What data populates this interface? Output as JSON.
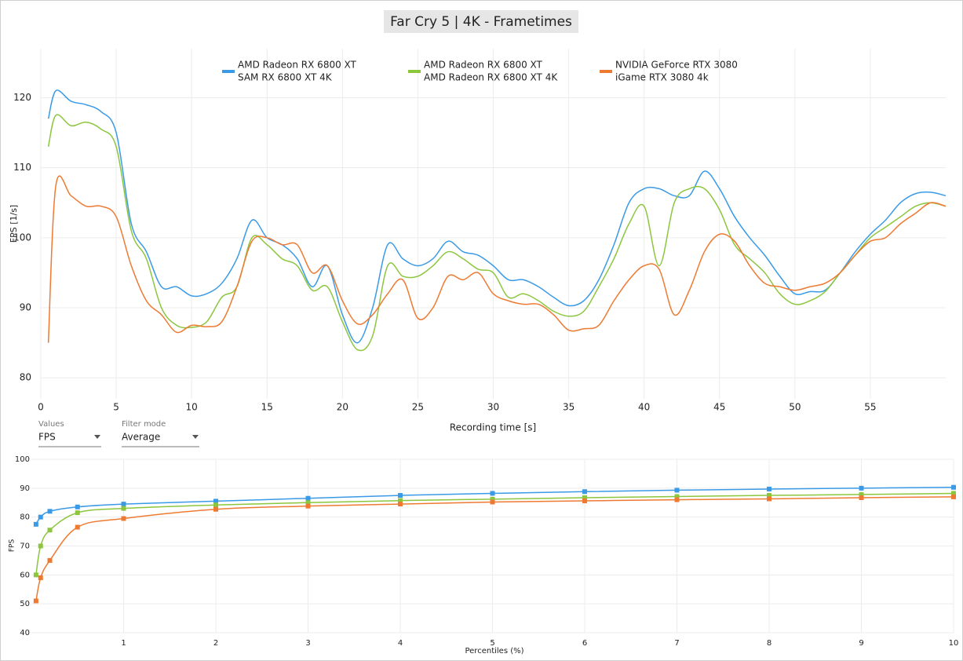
{
  "chart_data": [
    {
      "type": "line",
      "title": "Far Cry 5 | 4K - Frametimes",
      "xlabel": "Recording time [s]",
      "ylabel": "FPS [1/s]",
      "x": [
        0.5,
        1,
        2,
        3,
        4,
        5,
        6,
        7,
        8,
        9,
        10,
        11,
        12,
        13,
        14,
        15,
        16,
        17,
        18,
        19,
        20,
        21,
        22,
        23,
        24,
        25,
        26,
        27,
        28,
        29,
        30,
        31,
        32,
        33,
        34,
        35,
        36,
        37,
        38,
        39,
        40,
        41,
        42,
        43,
        44,
        45,
        46,
        47,
        48,
        49,
        50,
        51,
        52,
        53,
        54,
        55,
        56,
        57,
        58,
        59,
        60
      ],
      "series": [
        {
          "name": "AMD Radeon RX 6800 XT",
          "label": "SAM RX 6800 XT 4K",
          "color": "#3a9ae6",
          "values": [
            117,
            121,
            119.5,
            119,
            118,
            115,
            102,
            98,
            93,
            93,
            91.7,
            92,
            93.5,
            97,
            102.5,
            100,
            99,
            97,
            93,
            96,
            89,
            85,
            90,
            99,
            97,
            96,
            97,
            99.5,
            98,
            97.5,
            96,
            94,
            94,
            93,
            91.5,
            90.3,
            91,
            94,
            99,
            105,
            107,
            107,
            106,
            106,
            109.5,
            107,
            103,
            100,
            97.5,
            94.5,
            92,
            92.3,
            92.5,
            95,
            98,
            100.5,
            102.5,
            105,
            106.3,
            106.5,
            106
          ]
        },
        {
          "name": "AMD Radeon RX 6800 XT",
          "label": "AMD Radeon RX 6800 XT 4K",
          "color": "#8cc63e",
          "values": [
            113,
            117.5,
            116,
            116.5,
            115.5,
            113,
            101,
            97,
            90,
            87.5,
            87.2,
            88,
            91.5,
            93,
            100,
            99,
            97,
            96,
            92.5,
            93,
            88,
            84,
            86,
            96,
            94.5,
            94.5,
            96,
            98,
            97,
            95.5,
            95,
            91.5,
            92,
            91,
            89.5,
            88.8,
            89.5,
            93,
            97,
            102,
            104.5,
            96,
            105,
            107,
            107,
            104,
            99,
            97,
            95,
            92,
            90.5,
            91,
            92.3,
            95,
            97.5,
            100,
            101.5,
            103,
            104.5,
            105,
            104.5
          ]
        },
        {
          "name": "NVIDIA GeForce RTX 3080",
          "label": "iGame RTX 3080 4k",
          "color": "#ee7a32",
          "values": [
            85,
            107.5,
            106,
            104.5,
            104.5,
            103,
            96,
            91,
            89,
            86.5,
            87.5,
            87.3,
            88,
            93,
            99.5,
            100,
            99,
            99,
            95,
            96,
            91,
            87.7,
            89,
            92,
            94,
            88.5,
            90,
            94.5,
            94,
            95,
            92,
            91,
            90.5,
            90.5,
            89,
            86.8,
            87,
            87.5,
            91,
            94,
            96,
            95.5,
            89,
            92.5,
            98,
            100.5,
            99.5,
            96,
            93.5,
            93,
            92.5,
            93,
            93.5,
            95,
            97.5,
            99.5,
            100,
            102,
            103.5,
            105,
            104.5
          ]
        }
      ],
      "xlim": [
        0,
        60
      ],
      "xticks": [
        0,
        5,
        10,
        15,
        20,
        25,
        30,
        35,
        40,
        45,
        50,
        55
      ],
      "ylim": [
        77,
        127
      ],
      "yticks": [
        80,
        90,
        100,
        110,
        120
      ],
      "grid": true,
      "legend": "top"
    },
    {
      "type": "line",
      "xlabel": "Percentiles (%)",
      "ylabel": "FPS",
      "x": [
        0.05,
        0.1,
        0.2,
        0.5,
        1,
        2,
        3,
        4,
        5,
        6,
        7,
        8,
        9,
        10
      ],
      "series": [
        {
          "color": "#3a9ae6",
          "values": [
            77.5,
            80,
            82,
            83.5,
            84.5,
            85.5,
            86.5,
            87.5,
            88.2,
            88.8,
            89.3,
            89.7,
            90,
            90.3
          ]
        },
        {
          "color": "#8cc63e",
          "values": [
            60,
            70,
            75.5,
            81.5,
            83,
            84.2,
            85,
            85.7,
            86.2,
            86.7,
            87.1,
            87.5,
            87.8,
            88.2
          ]
        },
        {
          "color": "#ee7a32",
          "values": [
            51,
            59,
            65,
            76.5,
            79.5,
            82.7,
            83.8,
            84.5,
            85.2,
            85.6,
            86,
            86.3,
            86.7,
            87
          ]
        }
      ],
      "xlim": [
        0,
        10
      ],
      "xticks": [
        1,
        2,
        3,
        4,
        5,
        6,
        7,
        8,
        9,
        10
      ],
      "ylim": [
        40,
        100
      ],
      "yticks": [
        40,
        50,
        60,
        70,
        80,
        90,
        100
      ],
      "grid": true,
      "markers": true
    }
  ],
  "controls": {
    "values_label": "Values",
    "values": "FPS",
    "filter_label": "Filter mode",
    "filter": "Average"
  }
}
